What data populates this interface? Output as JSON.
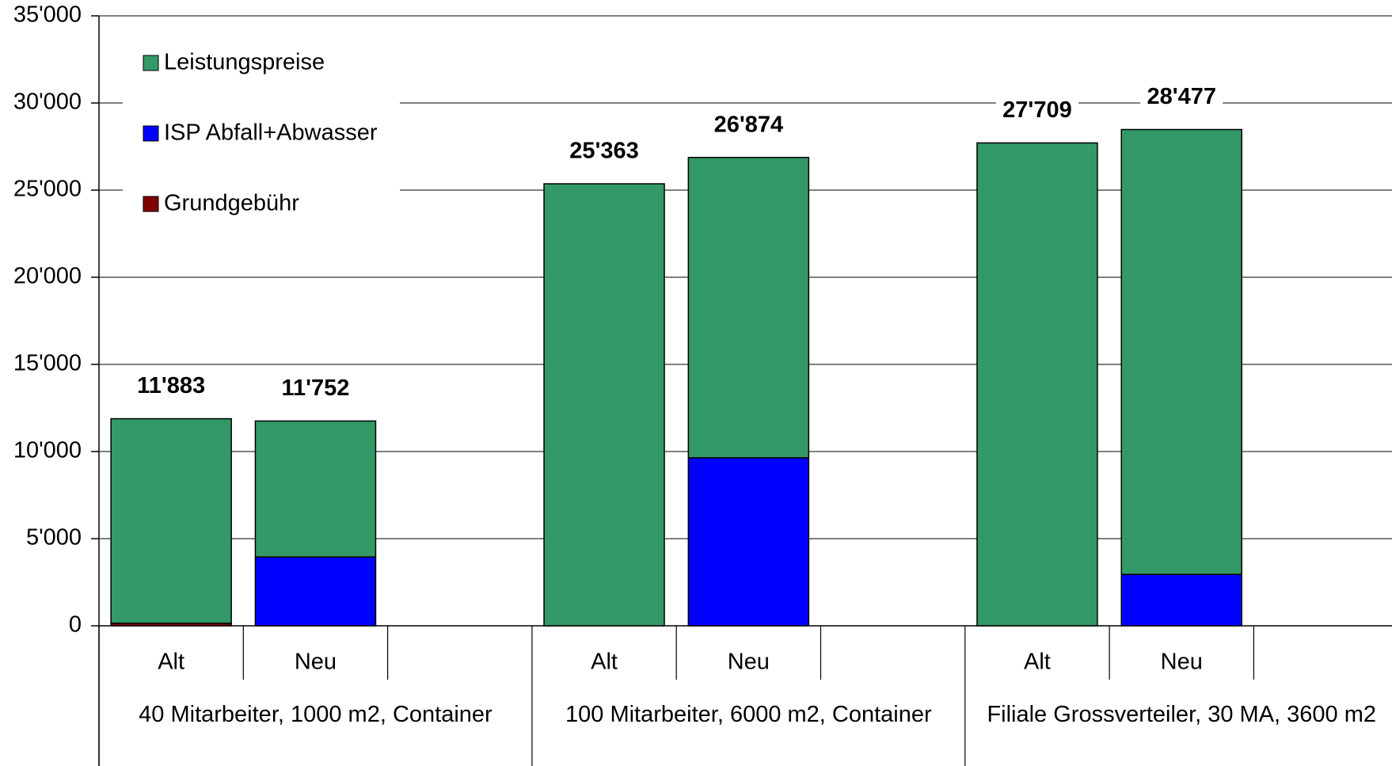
{
  "chart_data": {
    "type": "stacked_bar",
    "categories": [
      "Alt",
      "Neu",
      null,
      "Alt",
      "Neu",
      null,
      "Alt",
      "Neu",
      null
    ],
    "groups": [
      "40 Mitarbeiter, 1000 m2, Container",
      "100 Mitarbeiter, 6000 m2, Container",
      "Filiale Grossverteiler, 30 MA, 3600 m2"
    ],
    "series": [
      {
        "name": "Grundgebühr",
        "color": "#800000",
        "values": [
          150,
          0,
          null,
          0,
          0,
          null,
          0,
          0,
          null
        ]
      },
      {
        "name": "ISP Abfall+Abwasser",
        "color": "#0000ff",
        "values": [
          0,
          3950,
          null,
          0,
          9640,
          null,
          0,
          2950,
          null
        ]
      },
      {
        "name": "Leistungspreise",
        "color": "#339966",
        "values": [
          11733,
          7802,
          null,
          25363,
          17234,
          null,
          27709,
          25527,
          null
        ]
      }
    ],
    "totals": [
      11883,
      11752,
      null,
      25363,
      26874,
      null,
      27709,
      28477,
      null
    ],
    "total_labels": [
      "11'883",
      "11'752",
      null,
      "25'363",
      "26'874",
      null,
      "27'709",
      "28'477",
      null
    ],
    "ylim": [
      0,
      35000
    ],
    "yticks": [
      0,
      {
        "value": 5000,
        "label": "5'000"
      },
      {
        "value": 10000,
        "label": "10'000"
      },
      {
        "value": 15000,
        "label": "15'000"
      },
      {
        "value": 20000,
        "label": "20'000"
      },
      {
        "value": 25000,
        "label": "25'000"
      },
      {
        "value": 30000,
        "label": "30'000"
      },
      {
        "value": 35000,
        "label": "35'000"
      }
    ],
    "grid": true,
    "legend": "upper left"
  }
}
